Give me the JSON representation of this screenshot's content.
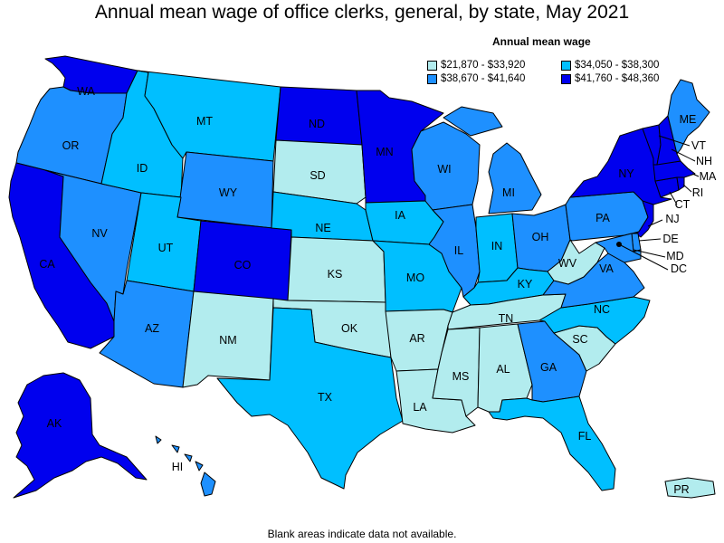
{
  "title": "Annual mean wage of office clerks, general, by state, May 2021",
  "legend": {
    "title": "Annual mean wage",
    "items": [
      {
        "label": "$21,870 - $33,920",
        "color": "#b2ecee"
      },
      {
        "label": "$34,050 - $38,300",
        "color": "#00bfff"
      },
      {
        "label": "$38,670 - $41,640",
        "color": "#1e90ff"
      },
      {
        "label": "$41,760 - $48,360",
        "color": "#0000ee"
      }
    ]
  },
  "footnote": "Blank areas indicate data not available.",
  "states": [
    {
      "abbr": "WA",
      "tier": 3
    },
    {
      "abbr": "OR",
      "tier": 2
    },
    {
      "abbr": "CA",
      "tier": 3
    },
    {
      "abbr": "NV",
      "tier": 2
    },
    {
      "abbr": "ID",
      "tier": 1
    },
    {
      "abbr": "MT",
      "tier": 1
    },
    {
      "abbr": "WY",
      "tier": 2
    },
    {
      "abbr": "UT",
      "tier": 1
    },
    {
      "abbr": "AZ",
      "tier": 2
    },
    {
      "abbr": "CO",
      "tier": 3
    },
    {
      "abbr": "NM",
      "tier": 0
    },
    {
      "abbr": "ND",
      "tier": 3
    },
    {
      "abbr": "SD",
      "tier": 0
    },
    {
      "abbr": "NE",
      "tier": 1
    },
    {
      "abbr": "KS",
      "tier": 0
    },
    {
      "abbr": "OK",
      "tier": 0
    },
    {
      "abbr": "TX",
      "tier": 1
    },
    {
      "abbr": "MN",
      "tier": 3
    },
    {
      "abbr": "IA",
      "tier": 1
    },
    {
      "abbr": "MO",
      "tier": 1
    },
    {
      "abbr": "AR",
      "tier": 0
    },
    {
      "abbr": "LA",
      "tier": 0
    },
    {
      "abbr": "WI",
      "tier": 2
    },
    {
      "abbr": "IL",
      "tier": 2
    },
    {
      "abbr": "MI",
      "tier": 2
    },
    {
      "abbr": "IN",
      "tier": 1
    },
    {
      "abbr": "OH",
      "tier": 2
    },
    {
      "abbr": "KY",
      "tier": 1
    },
    {
      "abbr": "TN",
      "tier": 0
    },
    {
      "abbr": "MS",
      "tier": 0
    },
    {
      "abbr": "AL",
      "tier": 0
    },
    {
      "abbr": "GA",
      "tier": 2
    },
    {
      "abbr": "FL",
      "tier": 1
    },
    {
      "abbr": "SC",
      "tier": 0
    },
    {
      "abbr": "NC",
      "tier": 1
    },
    {
      "abbr": "VA",
      "tier": 2
    },
    {
      "abbr": "WV",
      "tier": 0
    },
    {
      "abbr": "PA",
      "tier": 2
    },
    {
      "abbr": "NY",
      "tier": 3
    },
    {
      "abbr": "NJ",
      "tier": 3
    },
    {
      "abbr": "DE",
      "tier": 2
    },
    {
      "abbr": "MD",
      "tier": 2
    },
    {
      "abbr": "DC",
      "tier": 3
    },
    {
      "abbr": "CT",
      "tier": 3
    },
    {
      "abbr": "RI",
      "tier": 3
    },
    {
      "abbr": "MA",
      "tier": 3
    },
    {
      "abbr": "VT",
      "tier": 3
    },
    {
      "abbr": "NH",
      "tier": 3
    },
    {
      "abbr": "ME",
      "tier": 2
    },
    {
      "abbr": "AK",
      "tier": 3
    },
    {
      "abbr": "HI",
      "tier": 2
    },
    {
      "abbr": "PR",
      "tier": 0
    }
  ]
}
